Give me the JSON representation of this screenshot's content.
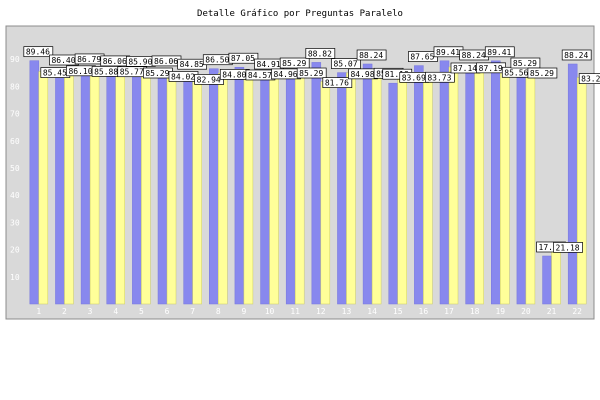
{
  "chart_data": {
    "type": "bar",
    "title": "Detalle Gráfico por Preguntas Paralelo",
    "xlabel": "",
    "ylabel": "",
    "ylim": [
      0,
      100
    ],
    "yticks": [
      10,
      20,
      30,
      40,
      50,
      60,
      70,
      80,
      90
    ],
    "grid": false,
    "legend": "none",
    "categories": [
      "1",
      "2",
      "3",
      "4",
      "5",
      "6",
      "7",
      "8",
      "9",
      "10",
      "11",
      "12",
      "13",
      "14",
      "15",
      "16",
      "17",
      "18",
      "19",
      "20",
      "21",
      "22"
    ],
    "series": [
      {
        "color": "#8888ee",
        "values": [
          89.46,
          86.4,
          86.79,
          86.06,
          85.9,
          86.06,
          84.85,
          86.5,
          87.05,
          84.91,
          85.29,
          88.82,
          85.07,
          88.24,
          81.18,
          87.65,
          89.41,
          88.24,
          89.41,
          85.29,
          17.65,
          88.24
        ]
      },
      {
        "color": "#ffff99",
        "values": [
          85.45,
          86.1,
          85.88,
          85.77,
          85.29,
          84.02,
          82.94,
          84.8,
          84.57,
          84.96,
          85.29,
          81.76,
          84.98,
          85.19,
          83.69,
          83.73,
          87.14,
          87.19,
          85.56,
          85.29,
          21.18,
          83.24
        ]
      }
    ]
  },
  "colors": {
    "plot_background": "#d9d9d9",
    "frame": "#8c8c8c",
    "bar_series_1": "#8888ee",
    "bar_series_2": "#ffff99"
  }
}
